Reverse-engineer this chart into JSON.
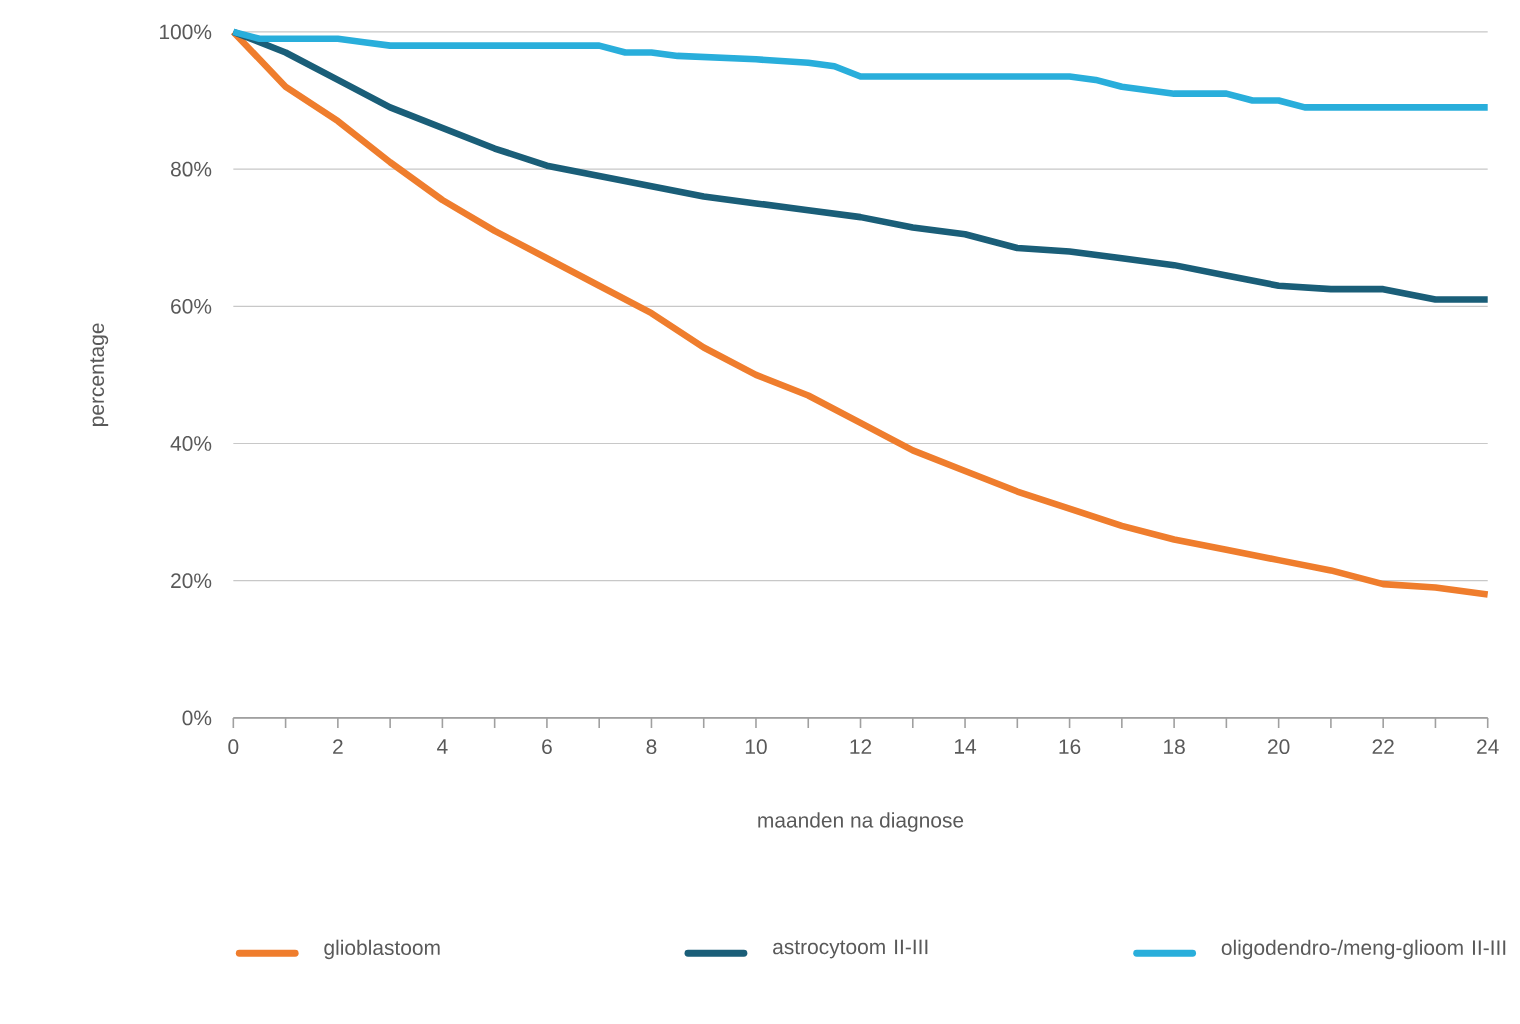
{
  "chart_data": {
    "type": "line",
    "xlabel": "maanden na diagnose",
    "ylabel": "percentage",
    "x": [
      0,
      1,
      2,
      3,
      4,
      5,
      6,
      7,
      8,
      9,
      10,
      11,
      12,
      13,
      14,
      15,
      16,
      17,
      18,
      19,
      20,
      21,
      22,
      23,
      24
    ],
    "series": [
      {
        "name": "glioblastoom",
        "color": "#ef7d2d",
        "values": [
          100,
          92,
          87,
          81,
          75.5,
          71,
          67,
          63,
          59,
          54,
          50,
          47,
          43,
          39,
          36,
          33,
          30.5,
          28,
          26,
          24.5,
          23,
          21.5,
          19.5,
          19,
          18
        ]
      },
      {
        "name": "astrocytoom II-III",
        "color": "#1a5e78",
        "values": [
          100,
          97,
          93,
          89,
          86,
          83,
          80.5,
          79,
          77.5,
          76,
          75,
          74,
          73,
          71.5,
          70.5,
          68.5,
          68,
          67,
          66,
          64.5,
          63,
          62.5,
          62.5,
          61,
          61
        ]
      },
      {
        "name": "oligodendro-/meng-glioom II-III",
        "color": "#29aedb",
        "x": [
          0,
          0.5,
          2,
          2.5,
          3,
          7,
          7.5,
          8,
          8.5,
          10,
          11,
          11.5,
          12,
          16,
          16.5,
          17,
          18,
          19,
          19.5,
          20,
          20.5,
          24
        ],
        "values": [
          100,
          99,
          99,
          98.5,
          98,
          98,
          97,
          97,
          96.5,
          96,
          95.5,
          95,
          93.5,
          93.5,
          93,
          92,
          91,
          91,
          90,
          90,
          89,
          89
        ]
      }
    ],
    "xlim": [
      0,
      24
    ],
    "xticks": [
      0,
      {
        "value": 1,
        "label": null
      },
      2,
      {
        "value": 3,
        "label": null
      },
      4,
      {
        "value": 5,
        "label": null
      },
      6,
      {
        "value": 7,
        "label": null
      },
      8,
      {
        "value": 9,
        "label": null
      },
      10,
      {
        "value": 11,
        "label": null
      },
      12,
      {
        "value": 13,
        "label": null
      },
      14,
      {
        "value": 15,
        "label": null
      },
      16,
      {
        "value": 17,
        "label": null
      },
      18,
      {
        "value": 19,
        "label": null
      },
      20,
      {
        "value": 21,
        "label": null
      },
      22,
      {
        "value": 23,
        "label": null
      },
      24
    ],
    "ylim": [
      0,
      100
    ],
    "yticks": [
      {
        "value": 0,
        "label": "0%"
      },
      {
        "value": 20,
        "label": "20%"
      },
      {
        "value": 40,
        "label": "40%"
      },
      {
        "value": 60,
        "label": "60%"
      },
      {
        "value": 80,
        "label": "80%"
      },
      {
        "value": 100,
        "label": "100%"
      }
    ],
    "grid": "y",
    "legend": "bottom",
    "marker": "none",
    "line_style": "solid"
  }
}
